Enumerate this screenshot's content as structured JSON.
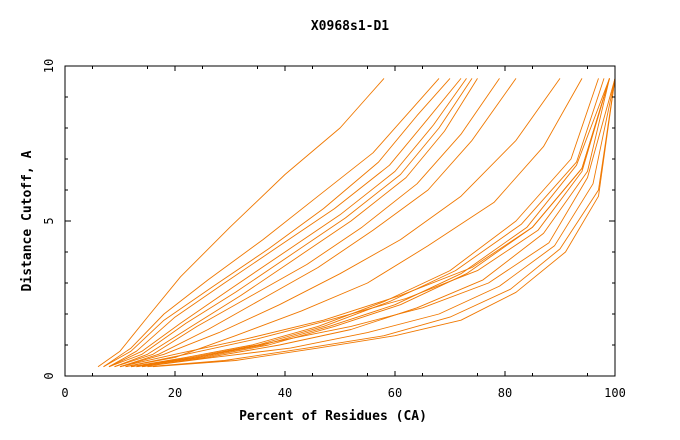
{
  "chart_data": {
    "type": "line",
    "title": "X0968s1-D1",
    "xlabel": "Percent of Residues (CA)",
    "ylabel": "Distance Cutoff, A",
    "xlim": [
      0,
      100
    ],
    "ylim": [
      0,
      10
    ],
    "x_ticks": [
      0,
      20,
      40,
      60,
      80,
      100
    ],
    "y_ticks": [
      0,
      5,
      10
    ],
    "grid": false,
    "legend": "none",
    "line_color": "#f07800",
    "series": [
      {
        "x": [
          6,
          10,
          15,
          21,
          30,
          40,
          50,
          55,
          58
        ],
        "y": [
          0.3,
          0.8,
          1.9,
          3.2,
          4.8,
          6.5,
          8.0,
          9.0,
          9.6
        ]
      },
      {
        "x": [
          7,
          12,
          18,
          26,
          36,
          46,
          56,
          63,
          68
        ],
        "y": [
          0.3,
          0.9,
          2.0,
          3.1,
          4.4,
          5.8,
          7.2,
          8.6,
          9.6
        ]
      },
      {
        "x": [
          7,
          12,
          18,
          27,
          37,
          47,
          57,
          64,
          70
        ],
        "y": [
          0.3,
          0.8,
          1.8,
          2.9,
          4.1,
          5.4,
          6.9,
          8.4,
          9.6
        ]
      },
      {
        "x": [
          8,
          13,
          20,
          29,
          39,
          49,
          59,
          66,
          72
        ],
        "y": [
          0.3,
          0.8,
          1.9,
          3.0,
          4.2,
          5.4,
          6.8,
          8.3,
          9.6
        ]
      },
      {
        "x": [
          8,
          14,
          21,
          30,
          40,
          50,
          60,
          67,
          73
        ],
        "y": [
          0.3,
          0.8,
          1.7,
          2.8,
          4.0,
          5.2,
          6.6,
          8.1,
          9.6
        ]
      },
      {
        "x": [
          8,
          14,
          22,
          31,
          41,
          51,
          61,
          68,
          74
        ],
        "y": [
          0.3,
          0.7,
          1.7,
          2.7,
          3.9,
          5.1,
          6.5,
          8.0,
          9.6
        ]
      },
      {
        "x": [
          9,
          15,
          23,
          32,
          42,
          52,
          62,
          69,
          75
        ],
        "y": [
          0.3,
          0.7,
          1.6,
          2.6,
          3.8,
          5.0,
          6.4,
          7.9,
          9.6
        ]
      },
      {
        "x": [
          9,
          16,
          24,
          34,
          44,
          54,
          64,
          72,
          79
        ],
        "y": [
          0.3,
          0.7,
          1.6,
          2.6,
          3.6,
          4.8,
          6.2,
          7.8,
          9.6
        ]
      },
      {
        "x": [
          10,
          17,
          26,
          36,
          46,
          56,
          66,
          74,
          82
        ],
        "y": [
          0.3,
          0.7,
          1.5,
          2.5,
          3.5,
          4.7,
          6.0,
          7.6,
          9.6
        ]
      },
      {
        "x": [
          10,
          18,
          28,
          39,
          50,
          61,
          72,
          82,
          90
        ],
        "y": [
          0.3,
          0.7,
          1.4,
          2.3,
          3.3,
          4.4,
          5.8,
          7.6,
          9.6
        ]
      },
      {
        "x": [
          11,
          20,
          31,
          43,
          55,
          66,
          78,
          87,
          94
        ],
        "y": [
          0.3,
          0.6,
          1.3,
          2.1,
          3.0,
          4.2,
          5.6,
          7.4,
          9.6
        ]
      },
      {
        "x": [
          12,
          22,
          34,
          46,
          58,
          70,
          82,
          92,
          97
        ],
        "y": [
          0.3,
          0.6,
          1.0,
          1.6,
          2.4,
          3.4,
          5.0,
          7.0,
          9.6
        ]
      },
      {
        "x": [
          12,
          23,
          35,
          47,
          59,
          71,
          83,
          93,
          98
        ],
        "y": [
          0.3,
          0.6,
          1.0,
          1.6,
          2.4,
          3.4,
          4.9,
          6.9,
          9.6
        ]
      },
      {
        "x": [
          13,
          24,
          36,
          48,
          60,
          72,
          84,
          93,
          99
        ],
        "y": [
          0.3,
          0.6,
          1.0,
          1.6,
          2.3,
          3.3,
          4.8,
          6.8,
          9.6
        ]
      },
      {
        "x": [
          13,
          25,
          37,
          49,
          61,
          73,
          85,
          94,
          99
        ],
        "y": [
          0.3,
          0.6,
          1.0,
          1.6,
          2.3,
          3.3,
          4.8,
          6.7,
          9.6
        ]
      },
      {
        "x": [
          14,
          26,
          39,
          52,
          64,
          76,
          87,
          95,
          99
        ],
        "y": [
          0.3,
          0.6,
          1.0,
          1.5,
          2.2,
          3.1,
          4.6,
          6.6,
          9.6
        ]
      },
      {
        "x": [
          11,
          22,
          35,
          48,
          62,
          75,
          86,
          94,
          99
        ],
        "y": [
          0.3,
          0.7,
          1.2,
          1.8,
          2.5,
          3.4,
          4.7,
          6.6,
          9.6
        ]
      },
      {
        "x": [
          10,
          20,
          33,
          47,
          61,
          74,
          85,
          94,
          99
        ],
        "y": [
          0.3,
          0.7,
          1.2,
          1.8,
          2.6,
          3.5,
          4.8,
          6.7,
          9.6
        ]
      },
      {
        "x": [
          12,
          24,
          38,
          52,
          65,
          77,
          88,
          95,
          100
        ],
        "y": [
          0.3,
          0.6,
          1.1,
          1.6,
          2.2,
          3.0,
          4.3,
          6.4,
          9.6
        ]
      },
      {
        "x": [
          14,
          27,
          41,
          55,
          68,
          79,
          89,
          96,
          100
        ],
        "y": [
          0.3,
          0.6,
          0.9,
          1.4,
          2.0,
          2.9,
          4.2,
          6.2,
          9.6
        ]
      },
      {
        "x": [
          15,
          29,
          44,
          58,
          70,
          81,
          90,
          97,
          100
        ],
        "y": [
          0.3,
          0.5,
          0.9,
          1.3,
          1.9,
          2.8,
          4.1,
          6.0,
          9.6
        ]
      },
      {
        "x": [
          16,
          31,
          46,
          60,
          72,
          82,
          91,
          97,
          100
        ],
        "y": [
          0.3,
          0.5,
          0.9,
          1.3,
          1.8,
          2.7,
          4.0,
          5.8,
          9.6
        ]
      }
    ]
  }
}
